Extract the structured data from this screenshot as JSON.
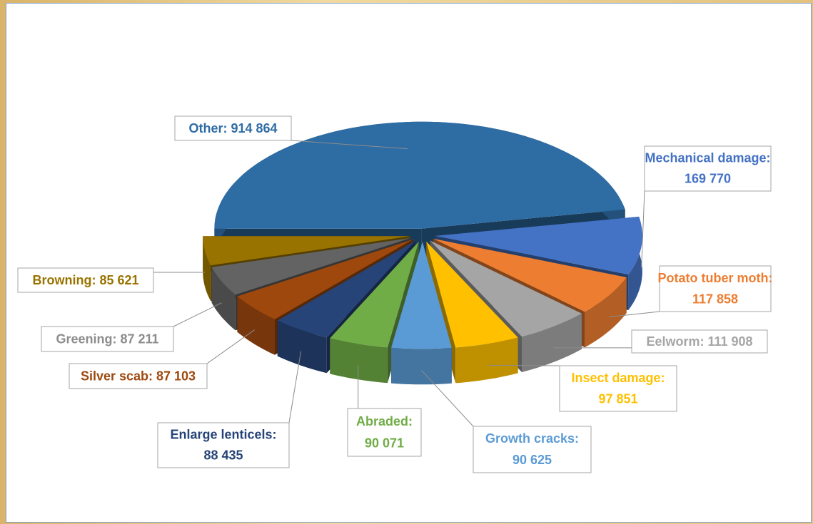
{
  "chart_data": {
    "type": "pie3d",
    "categories": [
      "Other:",
      "Mechanical damage:",
      "Potato tuber moth:",
      "Eelworm:",
      "Insect damage:",
      "Growth cracks:",
      "Abraded:",
      "Enlarge lenticels:",
      "Silver scab:",
      "Greening:",
      "Browning:"
    ],
    "values": [
      914864,
      169770,
      117858,
      111908,
      97851,
      90625,
      90071,
      88435,
      87103,
      87211,
      85621
    ],
    "value_labels": [
      "914 864",
      "169 770",
      "117 858",
      "111 908",
      "97 851",
      "90 625",
      "90 071",
      "88 435",
      "87 103",
      "87 211",
      "85 621"
    ],
    "colors": [
      "#2e6ca4",
      "#4472c4",
      "#ed7d31",
      "#a5a5a5",
      "#ffc000",
      "#5b9bd5",
      "#70ad47",
      "#264478",
      "#9e480e",
      "#636363",
      "#997300"
    ]
  }
}
